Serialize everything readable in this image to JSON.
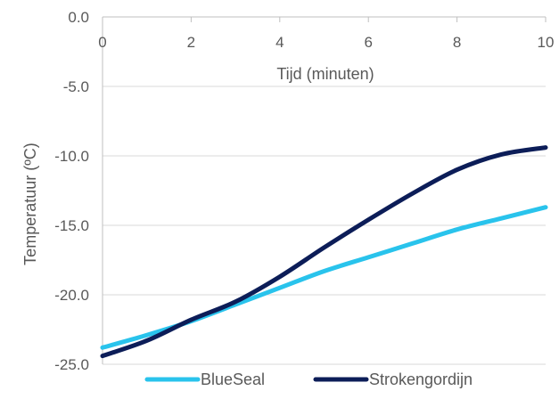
{
  "chart_data": {
    "type": "line",
    "xlabel": "Tijd (minuten)",
    "ylabel": "Temperatuur (ºC)",
    "xlim": [
      0,
      10
    ],
    "ylim": [
      -25,
      0
    ],
    "x_ticks": [
      0,
      2,
      4,
      6,
      8,
      10
    ],
    "y_ticks": [
      0,
      -5,
      -10,
      -15,
      -20,
      -25
    ],
    "x_tick_labels": [
      "0",
      "2",
      "4",
      "6",
      "8",
      "10"
    ],
    "y_tick_labels": [
      "0.0",
      "-5.0",
      "-10.0",
      "-15.0",
      "-20.0",
      "-25.0"
    ],
    "x_axis_position": "top",
    "grid": "horizontal",
    "legend_position": "bottom",
    "series": [
      {
        "name": "BlueSeal",
        "color": "#29c3ec",
        "x": [
          0,
          1,
          2,
          3,
          4,
          5,
          6,
          7,
          8,
          9,
          10
        ],
        "y": [
          -23.8,
          -22.9,
          -21.9,
          -20.7,
          -19.5,
          -18.3,
          -17.3,
          -16.3,
          -15.3,
          -14.5,
          -13.7
        ]
      },
      {
        "name": "Strokengordijn",
        "color": "#0c1d58",
        "x": [
          0,
          1,
          2,
          3,
          4,
          5,
          6,
          7,
          8,
          9,
          10
        ],
        "y": [
          -24.4,
          -23.3,
          -21.8,
          -20.5,
          -18.7,
          -16.6,
          -14.6,
          -12.7,
          -11.0,
          -9.9,
          -9.4
        ]
      }
    ]
  }
}
